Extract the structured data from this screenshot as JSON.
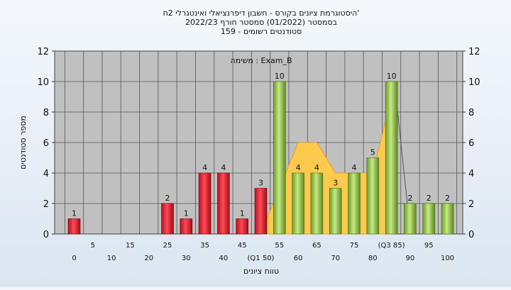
{
  "chart_data": {
    "type": "bar",
    "title_lines": [
      "היסטוגרמת ציונים בקורס - חשבון דיפרנציאלי ואינטגרלי 2ח'",
      "בסמסטר  (01/2022)  סמסטר חורף 2022/23",
      "סטודנטים רשומים - 159"
    ],
    "annotation": "משימה : Exam_B",
    "xlabel": "טווח ציונים",
    "ylabel": "מספר סטודנטים",
    "ylim": [
      0,
      12
    ],
    "yticks": [
      0,
      2,
      4,
      6,
      8,
      10,
      12
    ],
    "grid": true,
    "x_tick_labels_upper": [
      "5",
      "15",
      "25",
      "35",
      "45",
      "55",
      "65",
      "75",
      "(Q3 85)",
      "95"
    ],
    "x_tick_labels_lower": [
      "0",
      "10",
      "20",
      "30",
      "40",
      "(Q1 50)",
      "60",
      "70",
      "80",
      "90",
      "100"
    ],
    "bins": [
      {
        "value": 1,
        "label": "1",
        "group": "red"
      },
      {
        "value": 0,
        "label": "",
        "group": "red"
      },
      {
        "value": 0,
        "label": "",
        "group": "red"
      },
      {
        "value": 0,
        "label": "",
        "group": "red"
      },
      {
        "value": 0,
        "label": "",
        "group": "red"
      },
      {
        "value": 2,
        "label": "2",
        "group": "red"
      },
      {
        "value": 1,
        "label": "1",
        "group": "red"
      },
      {
        "value": 4,
        "label": "4",
        "group": "red"
      },
      {
        "value": 4,
        "label": "4",
        "group": "red"
      },
      {
        "value": 1,
        "label": "1",
        "group": "red"
      },
      {
        "value": 3,
        "label": "3",
        "group": "red"
      },
      {
        "value": 10,
        "label": "10",
        "group": "green"
      },
      {
        "value": 4,
        "label": "4",
        "group": "green"
      },
      {
        "value": 4,
        "label": "4",
        "group": "green"
      },
      {
        "value": 3,
        "label": "3",
        "group": "green"
      },
      {
        "value": 4,
        "label": "4",
        "group": "green"
      },
      {
        "value": 5,
        "label": "5",
        "group": "green"
      },
      {
        "value": 10,
        "label": "10",
        "group": "green"
      },
      {
        "value": 2,
        "label": "2",
        "group": "green"
      },
      {
        "value": 2,
        "label": "2",
        "group": "green"
      },
      {
        "value": 2,
        "label": "2",
        "group": "green"
      }
    ],
    "area_overlay": [
      {
        "bin": 10,
        "value": 0
      },
      {
        "bin": 12,
        "value": 6
      },
      {
        "bin": 13,
        "value": 6
      },
      {
        "bin": 14,
        "value": 4
      },
      {
        "bin": 16,
        "value": 4
      },
      {
        "bin": 17,
        "value": 9
      }
    ],
    "colors": {
      "plot_bg": "#c0c0c0",
      "red": "#e02030",
      "green": "#8cc040",
      "overlay": "#ffc94d"
    }
  }
}
